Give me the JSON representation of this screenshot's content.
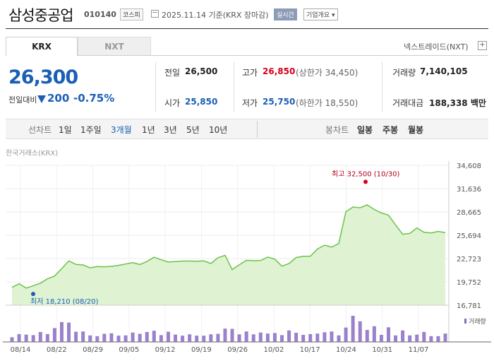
{
  "header": {
    "name": "삼성중공업",
    "code": "010140",
    "market": "코스피",
    "date": "2025.11.14 기준(KRX 장마감)",
    "realtime": "실시간",
    "info": "기업개요 ▾"
  },
  "tabs": [
    "KRX",
    "NXT"
  ],
  "nxt_link": "넥스트레이드(NXT)",
  "nxt_plus": "+",
  "quote": {
    "price": "26,300",
    "compare_label": "전일대비",
    "change": "200",
    "percent": "-0.75%"
  },
  "stats": {
    "prev_label": "전일",
    "prev": "26,500",
    "high_label": "고가",
    "high": "26,850",
    "upper": "(상한가 34,450)",
    "volume_label": "거래량",
    "volume": "7,140,105",
    "open_label": "시가",
    "open": "25,850",
    "low_label": "저가",
    "low": "25,750",
    "lower": "(하한가 18,550)",
    "amount_label": "거래대금",
    "amount": "188,338 백만"
  },
  "periods": {
    "label": "선차트",
    "items": [
      "1일",
      "1주일",
      "3개월",
      "1년",
      "3년",
      "5년",
      "10년"
    ],
    "active": "3개월",
    "candle_label": "봉차트",
    "candle_items": [
      "일봉",
      "주봉",
      "월봉"
    ]
  },
  "source": "한국거래소(KRX)",
  "chart_data": {
    "type": "area",
    "y_ticks": [
      "34,608",
      "31,636",
      "28,665",
      "25,694",
      "22,723",
      "19,752",
      "16,781"
    ],
    "ylim": [
      16781,
      34608
    ],
    "x_labels": [
      "08/14",
      "08/22",
      "08/29",
      "09/05",
      "09/12",
      "09/19",
      "09/26",
      "10/02",
      "10/17",
      "10/24",
      "10/31",
      "11/07"
    ],
    "high_label": "최고 32,500 (10/30)",
    "high": 32500,
    "low_label": "최저 18,210 (08/20)",
    "low": 18210,
    "volume_label": "거래량",
    "line_color": "#6cc24a",
    "fill_color": "#dff3d2",
    "volume_color": "#8a6bbf",
    "prices": [
      19050,
      19520,
      18960,
      19270,
      19590,
      20150,
      20490,
      21450,
      22430,
      21980,
      21910,
      21540,
      21710,
      21680,
      21730,
      21860,
      22030,
      22200,
      21970,
      22350,
      22890,
      22570,
      22280,
      22340,
      22410,
      22410,
      22380,
      22430,
      22090,
      22830,
      23140,
      21320,
      21930,
      22500,
      22450,
      22470,
      22910,
      22650,
      21750,
      22090,
      22850,
      23010,
      23030,
      23940,
      24430,
      24180,
      24640,
      28680,
      29300,
      29200,
      29570,
      28980,
      28540,
      28260,
      27010,
      25820,
      25930,
      26630,
      26070,
      25990,
      26190,
      26020
    ],
    "volumes": [
      0.18,
      0.3,
      0.28,
      0.26,
      0.38,
      0.3,
      0.53,
      0.76,
      0.74,
      0.39,
      0.4,
      0.25,
      0.22,
      0.31,
      0.33,
      0.24,
      0.25,
      0.36,
      0.31,
      0.38,
      0.43,
      0.26,
      0.39,
      0.28,
      0.24,
      0.29,
      0.24,
      0.24,
      0.29,
      0.31,
      0.51,
      0.5,
      0.29,
      0.4,
      0.29,
      0.36,
      0.32,
      0.34,
      0.26,
      0.44,
      0.35,
      0.27,
      0.3,
      0.32,
      0.37,
      0.4,
      0.25,
      0.55,
      1.0,
      0.79,
      0.46,
      0.6,
      0.27,
      0.56,
      0.25,
      0.44,
      0.25,
      0.28,
      0.38,
      0.22,
      0.22,
      0.32
    ]
  }
}
